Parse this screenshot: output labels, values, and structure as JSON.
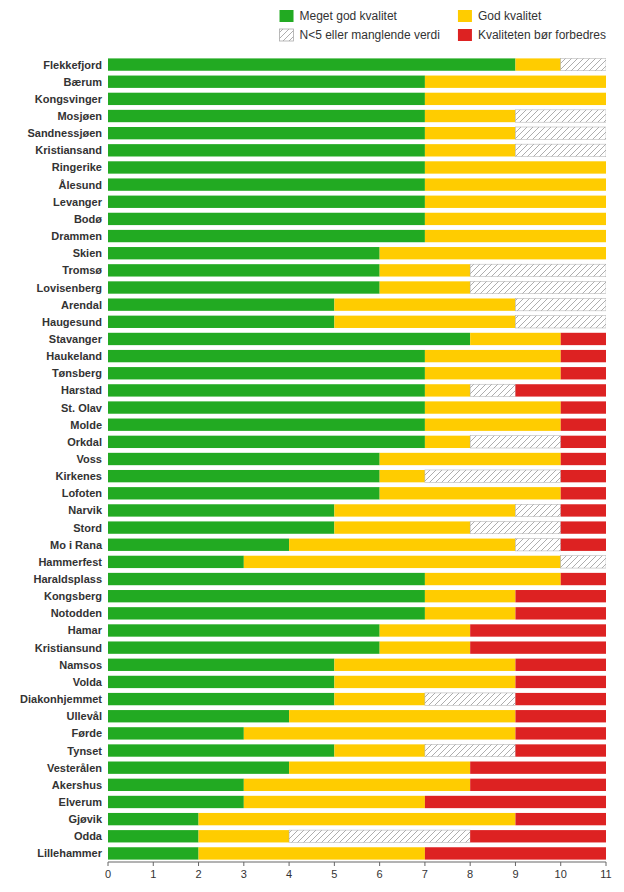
{
  "chart_data": {
    "type": "bar",
    "orientation": "horizontal",
    "stacked": true,
    "categories": [
      "Flekkefjord",
      "Bærum",
      "Kongsvinger",
      "Mosjøen",
      "Sandnessjøen",
      "Kristiansand",
      "Ringerike",
      "Ålesund",
      "Levanger",
      "Bodø",
      "Drammen",
      "Skien",
      "Tromsø",
      "Lovisenberg",
      "Arendal",
      "Haugesund",
      "Stavanger",
      "Haukeland",
      "Tønsberg",
      "Harstad",
      "St. Olav",
      "Molde",
      "Orkdal",
      "Voss",
      "Kirkenes",
      "Lofoten",
      "Narvik",
      "Stord",
      "Mo i Rana",
      "Hammerfest",
      "Haraldsplass",
      "Kongsberg",
      "Notodden",
      "Hamar",
      "Kristiansund",
      "Namsos",
      "Volda",
      "Diakonhjemmet",
      "Ullevål",
      "Førde",
      "Tynset",
      "Vesterålen",
      "Akershus",
      "Elverum",
      "Gjøvik",
      "Odda",
      "Lillehammer"
    ],
    "series": [
      {
        "name": "Meget god kvalitet",
        "color": "#22aa22",
        "values": [
          9,
          7,
          7,
          7,
          7,
          7,
          7,
          7,
          7,
          7,
          7,
          6,
          6,
          6,
          5,
          5,
          8,
          7,
          7,
          7,
          7,
          7,
          7,
          6,
          6,
          6,
          5,
          5,
          4,
          3,
          7,
          7,
          7,
          6,
          6,
          5,
          5,
          5,
          4,
          3,
          5,
          4,
          3,
          3,
          2,
          2,
          2
        ]
      },
      {
        "name": "God kvalitet",
        "color": "#ffcc00",
        "values": [
          1,
          4,
          4,
          2,
          2,
          2,
          4,
          4,
          4,
          4,
          4,
          5,
          2,
          2,
          4,
          4,
          2,
          3,
          3,
          1,
          3,
          3,
          1,
          4,
          1,
          4,
          4,
          3,
          5,
          7,
          3,
          2,
          2,
          2,
          2,
          4,
          4,
          2,
          5,
          6,
          2,
          4,
          5,
          4,
          7,
          2,
          5
        ]
      },
      {
        "name": "N<5 eller manglende verdi",
        "color": "#ffffff",
        "values": [
          1,
          0,
          0,
          2,
          2,
          2,
          0,
          0,
          0,
          0,
          0,
          0,
          3,
          3,
          2,
          2,
          0,
          0,
          0,
          1,
          0,
          0,
          2,
          0,
          3,
          0,
          1,
          2,
          1,
          1,
          0,
          0,
          0,
          0,
          0,
          0,
          0,
          2,
          0,
          0,
          2,
          0,
          0,
          0,
          0,
          4,
          0
        ]
      },
      {
        "name": "Kvaliteten bør forbedres",
        "color": "#dd2222",
        "values": [
          0,
          0,
          0,
          0,
          0,
          0,
          0,
          0,
          0,
          0,
          0,
          0,
          0,
          0,
          0,
          0,
          1,
          1,
          1,
          2,
          1,
          1,
          1,
          1,
          1,
          1,
          1,
          1,
          1,
          0,
          1,
          2,
          2,
          3,
          3,
          2,
          2,
          2,
          2,
          2,
          2,
          3,
          3,
          4,
          2,
          3,
          4
        ]
      }
    ],
    "xlim": [
      0,
      11
    ],
    "xticks": [
      0,
      1,
      2,
      3,
      4,
      5,
      6,
      7,
      8,
      9,
      10,
      11
    ],
    "grid": false,
    "legend": "upper right"
  }
}
